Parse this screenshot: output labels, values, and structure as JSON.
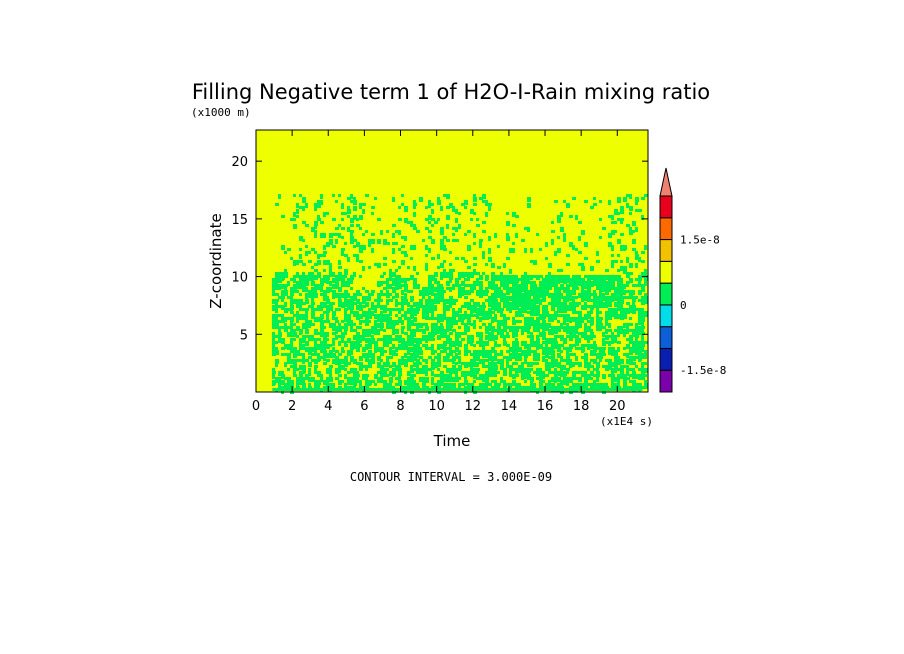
{
  "chart_data": {
    "type": "heatmap",
    "title": "Filling Negative term 1 of H2O-I-Rain mixing ratio",
    "xlabel": "Time",
    "ylabel": "Z-coordinate",
    "x_scale_note": "(x1E4 s)",
    "y_scale_note": "(x1000 m)",
    "xlim": [
      0,
      21.7
    ],
    "ylim": [
      0,
      22.7
    ],
    "x_ticks": [
      0,
      2,
      4,
      6,
      8,
      10,
      12,
      14,
      16,
      18,
      20
    ],
    "x_tick_labels": [
      "0",
      "2",
      "4",
      "6",
      "8",
      "10",
      "12",
      "14",
      "16",
      "18",
      "20"
    ],
    "y_ticks": [
      5,
      10,
      15,
      20
    ],
    "y_tick_labels": [
      "5",
      "10",
      "15",
      "20"
    ],
    "background_level_color": "#eeff00",
    "field_levels_present": [
      "#00ee55",
      "#eeff00"
    ],
    "colorbar": {
      "colors": [
        "#7a00aa",
        "#0a1fb0",
        "#0d5fd8",
        "#00dde8",
        "#00ee55",
        "#eeff00",
        "#f2c200",
        "#ff6a00",
        "#e8001c"
      ],
      "extend_color": "#f08070",
      "labels": [
        "1.5e-8",
        "0",
        "-1.5e-8"
      ]
    },
    "contour_interval_label": "CONTOUR INTERVAL = 3.000E-09",
    "colors": {
      "positive_field": "#eeff00",
      "near_zero_negative": "#00ee55"
    }
  }
}
